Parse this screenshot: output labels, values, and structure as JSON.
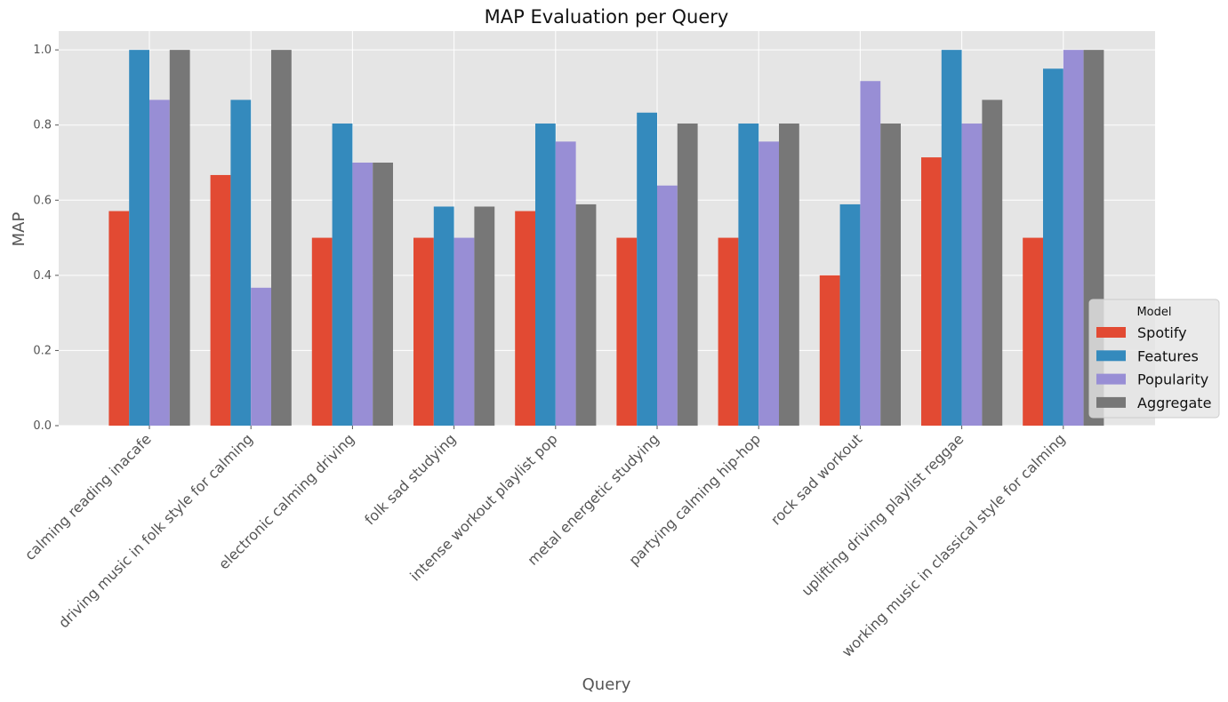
{
  "chart_data": {
    "type": "bar",
    "title": "MAP Evaluation per Query",
    "xlabel": "Query",
    "ylabel": "MAP",
    "ylim": [
      0,
      1.05
    ],
    "yticks": [
      "0.0",
      "0.2",
      "0.4",
      "0.6",
      "0.8",
      "1.0"
    ],
    "grid": true,
    "legend_title": "Model",
    "legend_position": "lower-right",
    "categories": [
      "calming reading inacafe",
      "driving music in folk style for calming",
      "electronic calming driving",
      "folk sad studying",
      "intense workout playlist pop",
      "metal energetic studying",
      "partying calming hip-hop",
      "rock sad workout",
      "uplifting driving playlist reggae",
      "working music in classical style for calming"
    ],
    "series": [
      {
        "name": "Spotify",
        "color": "#e24a33",
        "values": [
          0.571,
          0.667,
          0.5,
          0.5,
          0.571,
          0.5,
          0.5,
          0.4,
          0.714,
          0.5
        ]
      },
      {
        "name": "Features",
        "color": "#348abd",
        "values": [
          1.0,
          0.867,
          0.804,
          0.583,
          0.804,
          0.833,
          0.804,
          0.589,
          1.0,
          0.95
        ]
      },
      {
        "name": "Popularity",
        "color": "#988ed5",
        "values": [
          0.867,
          0.367,
          0.7,
          0.5,
          0.756,
          0.639,
          0.756,
          0.917,
          0.804,
          1.0
        ]
      },
      {
        "name": "Aggregate",
        "color": "#777777",
        "values": [
          1.0,
          1.0,
          0.7,
          0.583,
          0.589,
          0.804,
          0.804,
          0.804,
          0.867,
          1.0
        ]
      }
    ]
  }
}
